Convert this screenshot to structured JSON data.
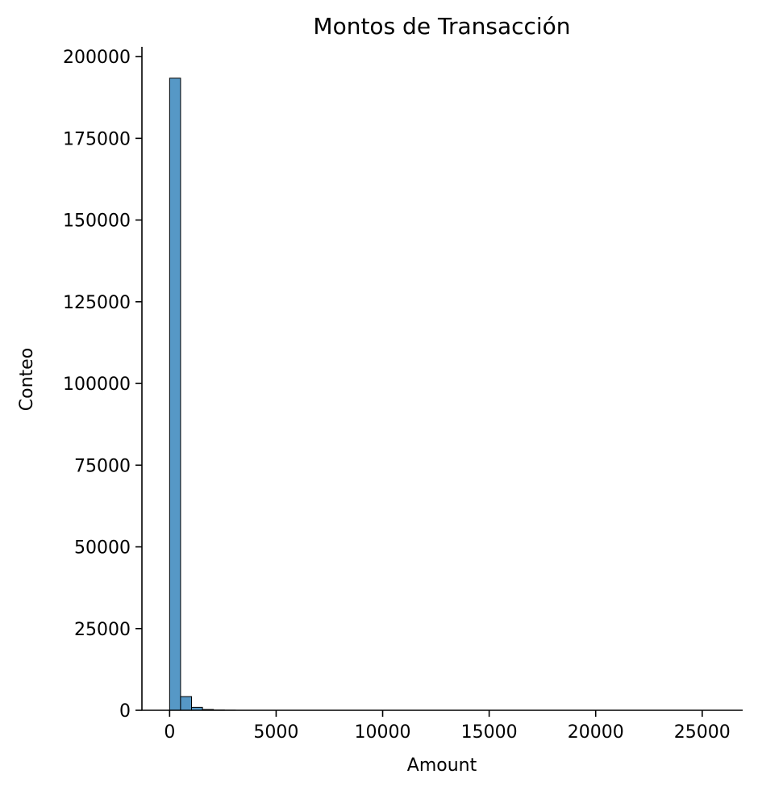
{
  "chart_data": {
    "type": "bar",
    "title": "Montos de Transacción",
    "xlabel": "Amount",
    "ylabel": "Conteo",
    "xlim": [
      -1300,
      26900
    ],
    "ylim": [
      0,
      203000
    ],
    "xticks": [
      0,
      5000,
      10000,
      15000,
      20000,
      25000
    ],
    "yticks": [
      0,
      25000,
      50000,
      75000,
      100000,
      125000,
      150000,
      175000,
      200000
    ],
    "grid": false,
    "bin_width": 514,
    "bins": [
      {
        "x0": 0,
        "x1": 514,
        "count": 193400
      },
      {
        "x0": 514,
        "x1": 1028,
        "count": 4200
      },
      {
        "x0": 1028,
        "x1": 1542,
        "count": 900
      },
      {
        "x0": 1542,
        "x1": 2056,
        "count": 250
      },
      {
        "x0": 2056,
        "x1": 2570,
        "count": 100
      },
      {
        "x0": 2570,
        "x1": 3084,
        "count": 40
      }
    ],
    "colors": {
      "bar_fill": "#5698c6",
      "bar_edge": "#000000"
    }
  }
}
